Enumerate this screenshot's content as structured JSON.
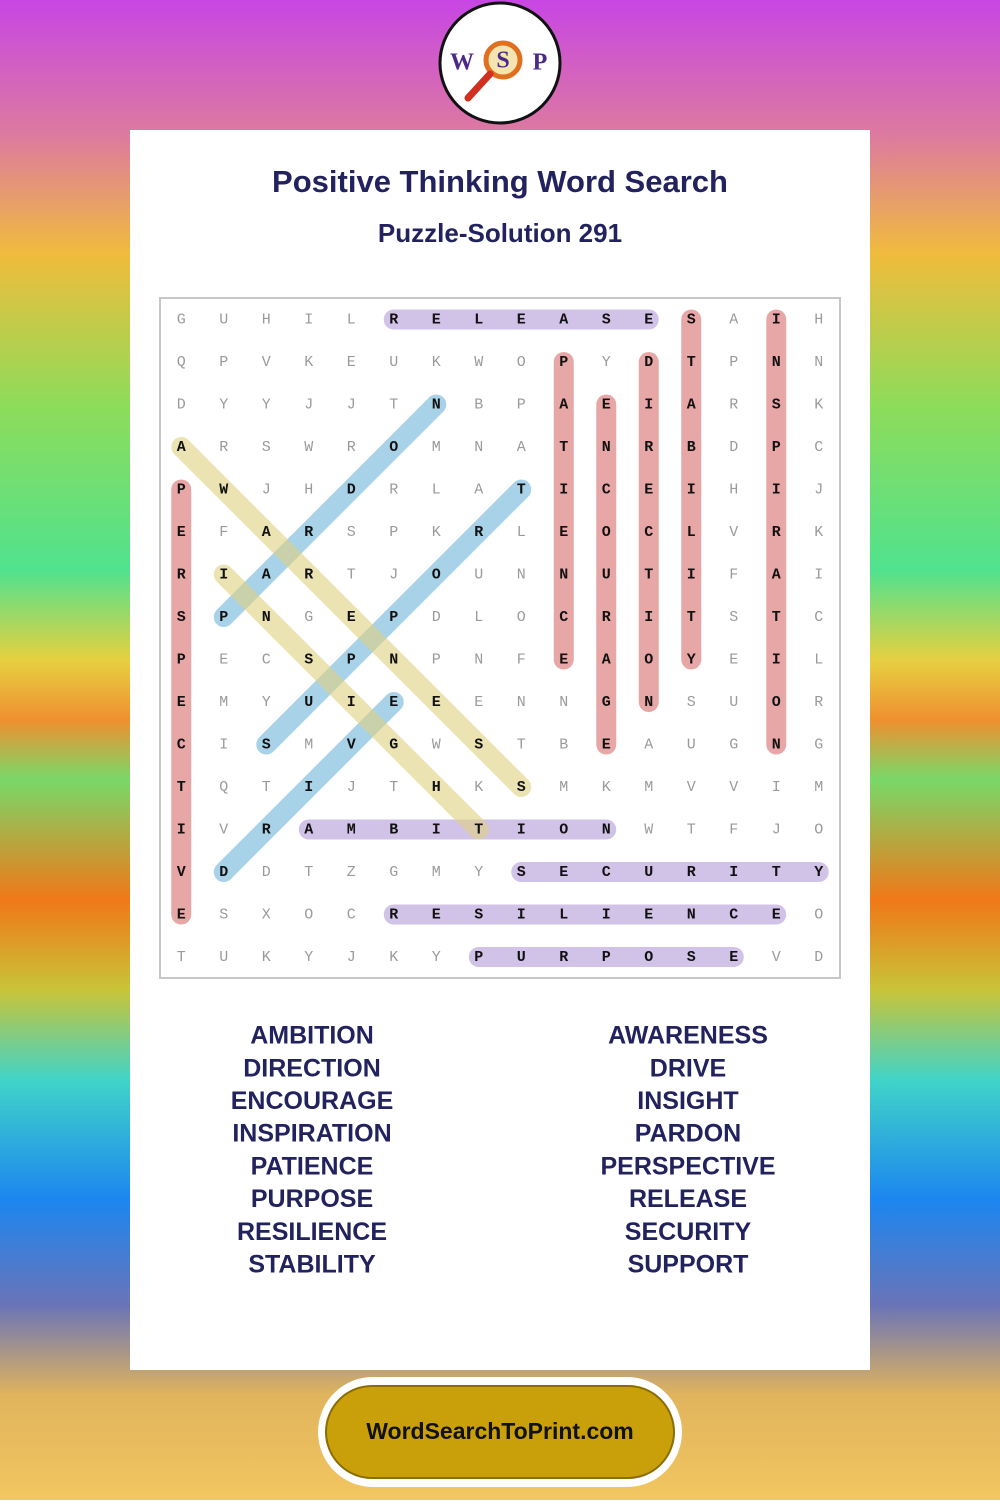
{
  "logo": [
    "W",
    "S",
    "P"
  ],
  "header": {
    "title": "Positive Thinking Word Search",
    "subtitle": "Puzzle-Solution 291"
  },
  "grid": {
    "rows": [
      [
        "G",
        "U",
        "H",
        "I",
        "L",
        "R",
        "E",
        "L",
        "E",
        "A",
        "S",
        "E",
        "S",
        "A",
        "I",
        "H"
      ],
      [
        "Q",
        "P",
        "V",
        "K",
        "E",
        "U",
        "K",
        "W",
        "O",
        "P",
        "Y",
        "D",
        "T",
        "P",
        "N",
        "N"
      ],
      [
        "D",
        "Y",
        "Y",
        "J",
        "J",
        "T",
        "N",
        "B",
        "P",
        "A",
        "E",
        "I",
        "A",
        "R",
        "S",
        "K"
      ],
      [
        "A",
        "R",
        "S",
        "W",
        "R",
        "O",
        "M",
        "N",
        "A",
        "T",
        "N",
        "R",
        "B",
        "D",
        "P",
        "C"
      ],
      [
        "P",
        "W",
        "J",
        "H",
        "D",
        "R",
        "L",
        "A",
        "T",
        "I",
        "C",
        "E",
        "I",
        "H",
        "I",
        "J"
      ],
      [
        "E",
        "F",
        "A",
        "R",
        "S",
        "P",
        "K",
        "R",
        "L",
        "E",
        "O",
        "C",
        "L",
        "V",
        "R",
        "K"
      ],
      [
        "R",
        "I",
        "A",
        "R",
        "T",
        "J",
        "O",
        "U",
        "N",
        "N",
        "U",
        "T",
        "I",
        "F",
        "A",
        "I"
      ],
      [
        "S",
        "P",
        "N",
        "G",
        "E",
        "P",
        "D",
        "L",
        "O",
        "C",
        "R",
        "I",
        "T",
        "S",
        "T",
        "C"
      ],
      [
        "P",
        "E",
        "C",
        "S",
        "P",
        "N",
        "P",
        "N",
        "F",
        "E",
        "A",
        "O",
        "Y",
        "E",
        "I",
        "L"
      ],
      [
        "E",
        "M",
        "Y",
        "U",
        "I",
        "E",
        "E",
        "E",
        "N",
        "N",
        "G",
        "N",
        "S",
        "U",
        "O",
        "R"
      ],
      [
        "C",
        "I",
        "S",
        "M",
        "V",
        "G",
        "W",
        "S",
        "T",
        "B",
        "E",
        "A",
        "U",
        "G",
        "N",
        "G"
      ],
      [
        "T",
        "Q",
        "T",
        "I",
        "J",
        "T",
        "H",
        "K",
        "S",
        "M",
        "K",
        "M",
        "V",
        "V",
        "I",
        "M"
      ],
      [
        "I",
        "V",
        "R",
        "A",
        "M",
        "B",
        "I",
        "T",
        "I",
        "O",
        "N",
        "W",
        "T",
        "F",
        "J",
        "O"
      ],
      [
        "V",
        "D",
        "D",
        "T",
        "Z",
        "G",
        "M",
        "Y",
        "S",
        "E",
        "C",
        "U",
        "R",
        "I",
        "T",
        "Y"
      ],
      [
        "E",
        "S",
        "X",
        "O",
        "C",
        "R",
        "E",
        "S",
        "I",
        "L",
        "I",
        "E",
        "N",
        "C",
        "E",
        "O"
      ],
      [
        "T",
        "U",
        "K",
        "Y",
        "J",
        "K",
        "Y",
        "P",
        "U",
        "R",
        "P",
        "O",
        "S",
        "E",
        "V",
        "D"
      ]
    ]
  },
  "word_list": {
    "left": [
      "AMBITION",
      "DIRECTION",
      "ENCOURAGE",
      "INSPIRATION",
      "PATIENCE",
      "PURPOSE",
      "RESILIENCE",
      "STABILITY"
    ],
    "right": [
      "AWARENESS",
      "DRIVE",
      "INSIGHT",
      "PARDON",
      "PERSPECTIVE",
      "RELEASE",
      "SECURITY",
      "SUPPORT"
    ]
  },
  "footer": {
    "site": "WordSearchToPrint.com"
  }
}
